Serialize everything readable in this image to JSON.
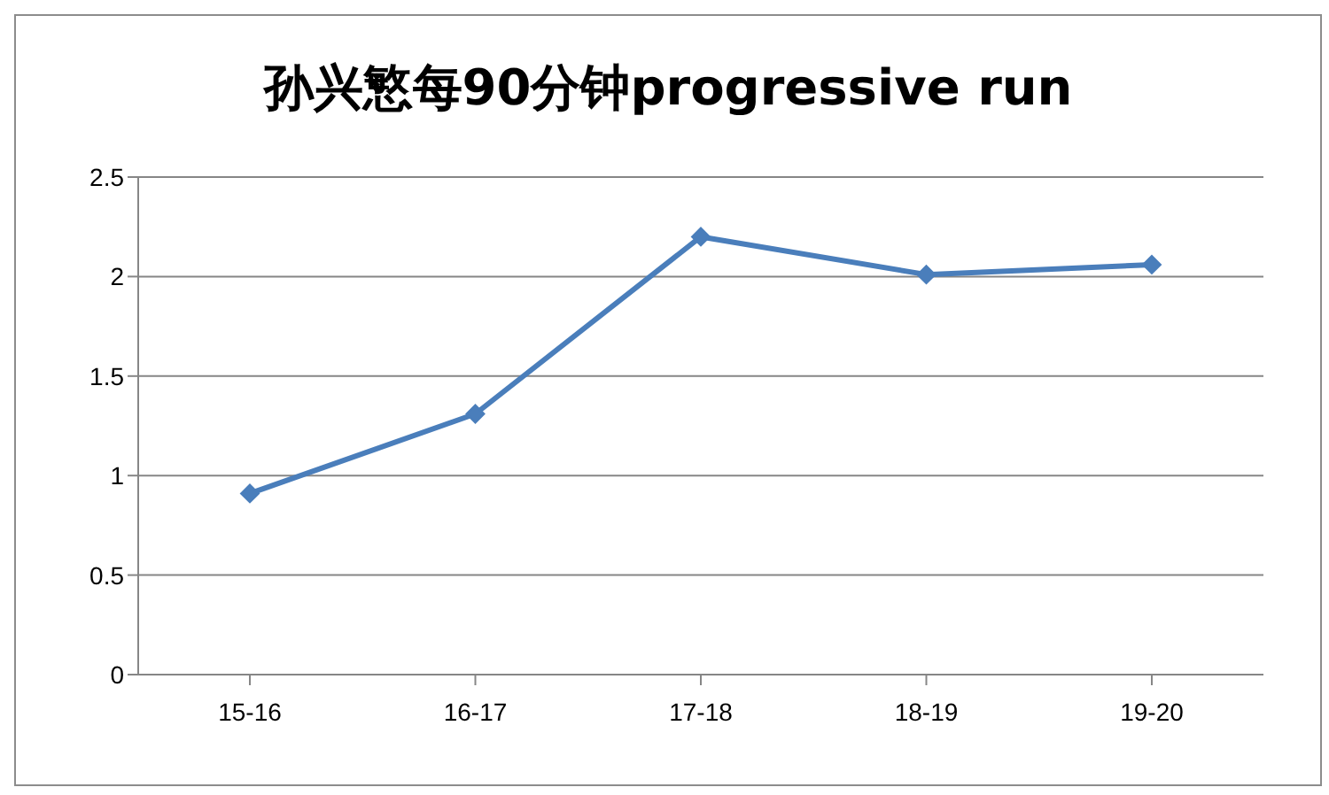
{
  "chart_data": {
    "type": "line",
    "title": "孙兴慜每90分钟progressive run",
    "categories": [
      "15-16",
      "16-17",
      "17-18",
      "18-19",
      "19-20"
    ],
    "series": [
      {
        "color": "#4a7ebb",
        "values": [
          0.91,
          1.31,
          2.2,
          2.01,
          2.06
        ]
      }
    ],
    "ylim": [
      0,
      2.5
    ],
    "yticks": [
      0,
      0.5,
      1,
      1.5,
      2,
      2.5
    ],
    "grid": "y",
    "marker": "diamond",
    "line_style": "solid"
  }
}
